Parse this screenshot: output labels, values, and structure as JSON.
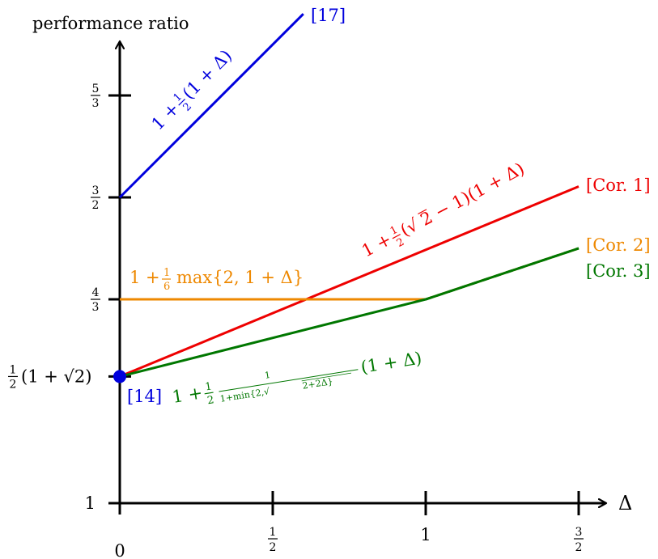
{
  "chart_data": {
    "type": "line",
    "title": "",
    "xlabel": "Δ",
    "ylabel": "performance ratio",
    "xlim": [
      0,
      1.5
    ],
    "ylim": [
      1,
      1.9
    ],
    "colors": {
      "blue": "#0000dd",
      "red": "#ee0000",
      "orange": "#ee8800",
      "green": "#007700",
      "axis": "#000000"
    },
    "x_ticks": [
      {
        "value": 0,
        "label": "0"
      },
      {
        "value": 0.5,
        "label": "1/2"
      },
      {
        "value": 1,
        "label": "1"
      },
      {
        "value": 1.5,
        "label": "3/2"
      }
    ],
    "y_ticks": [
      {
        "value": 1,
        "label": "1"
      },
      {
        "value": 1.2071,
        "label": "1/2(1 + √2)"
      },
      {
        "value": 1.3333,
        "label": "4/3"
      },
      {
        "value": 1.5,
        "label": "3/2"
      },
      {
        "value": 1.6667,
        "label": "5/3"
      }
    ],
    "series": [
      {
        "name": "[17]",
        "formula": "1 + 1/2(1 + Δ)",
        "color": "blue",
        "x": [
          0,
          0.6
        ],
        "y": [
          1.5,
          1.8
        ]
      },
      {
        "name": "[Cor. 1]",
        "formula": "1 + 1/2(√2 − 1)(1 + Δ)",
        "color": "red",
        "x": [
          0,
          1.5
        ],
        "y": [
          1.2071,
          1.5178
        ]
      },
      {
        "name": "[Cor. 2]",
        "formula": "1 + 1/6 max{2, 1 + Δ}",
        "color": "orange",
        "x": [
          0,
          1,
          1.5
        ],
        "y": [
          1.3333,
          1.3333,
          1.4167
        ]
      },
      {
        "name": "[Cor. 3]",
        "formula": "1 + 1/2 · 1/(1+min{2, √(2+2Δ)}) · (1 + Δ)",
        "color": "green",
        "x": [
          0,
          1,
          1.5
        ],
        "y": [
          1.2071,
          1.3333,
          1.4167
        ]
      }
    ],
    "points": [
      {
        "name": "[14]",
        "x": 0,
        "y": 1.2071,
        "color": "blue"
      }
    ]
  }
}
